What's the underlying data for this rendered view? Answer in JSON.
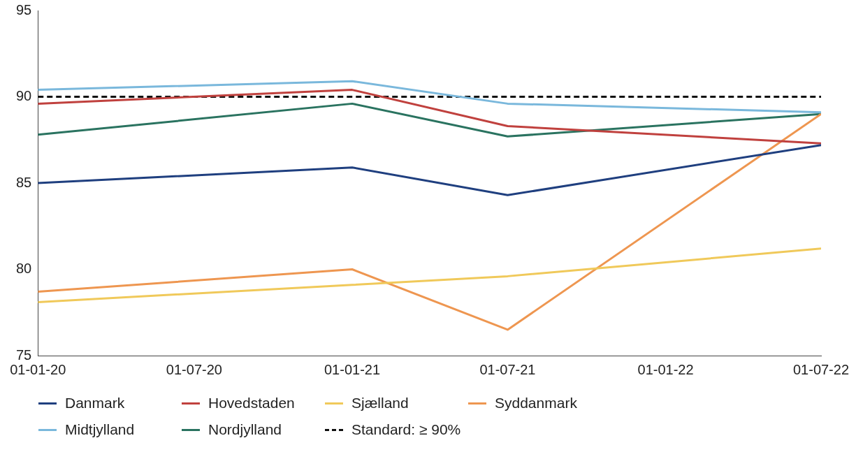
{
  "chart_data": {
    "type": "line",
    "x": [
      "2020-01-01",
      "2021-01-01",
      "2021-07-01",
      "2022-07-01"
    ],
    "series": [
      {
        "name": "Danmark",
        "color": "#1f3f7f",
        "values": [
          85.0,
          85.9,
          84.3,
          87.2
        ]
      },
      {
        "name": "Hovedstaden",
        "color": "#c0413e",
        "values": [
          89.6,
          90.4,
          88.3,
          87.3
        ]
      },
      {
        "name": "Sjælland",
        "color": "#f0c95a",
        "values": [
          78.1,
          79.1,
          79.6,
          81.2
        ]
      },
      {
        "name": "Syddanmark",
        "color": "#ee9650",
        "values": [
          78.7,
          80.0,
          76.5,
          89.0
        ]
      },
      {
        "name": "Midtjylland",
        "color": "#7ab8dc",
        "values": [
          90.4,
          90.9,
          89.6,
          89.1
        ]
      },
      {
        "name": "Nordjylland",
        "color": "#2a7360",
        "values": [
          87.8,
          89.6,
          87.7,
          89.0
        ]
      }
    ],
    "ref_lines": [
      {
        "axis": "y",
        "value": 90,
        "label": "Standard: ≥ 90%",
        "color": "#111111",
        "line_style": "dashed"
      }
    ],
    "xlim": [
      "2020-01-01",
      "2022-07-01"
    ],
    "xticks": [
      {
        "value": "2020-01-01",
        "label": "01-01-20"
      },
      {
        "value": "2020-07-01",
        "label": "01-07-20"
      },
      {
        "value": "2021-01-01",
        "label": "01-01-21"
      },
      {
        "value": "2021-07-01",
        "label": "01-07-21"
      },
      {
        "value": "2022-01-01",
        "label": "01-01-22"
      },
      {
        "value": "2022-07-01",
        "label": "01-07-22"
      }
    ],
    "ylim": [
      75,
      95
    ],
    "yticks": [
      75,
      80,
      85,
      90,
      95
    ],
    "grid": false,
    "legend": "bottom",
    "marker": "none",
    "line_style": "solid"
  }
}
